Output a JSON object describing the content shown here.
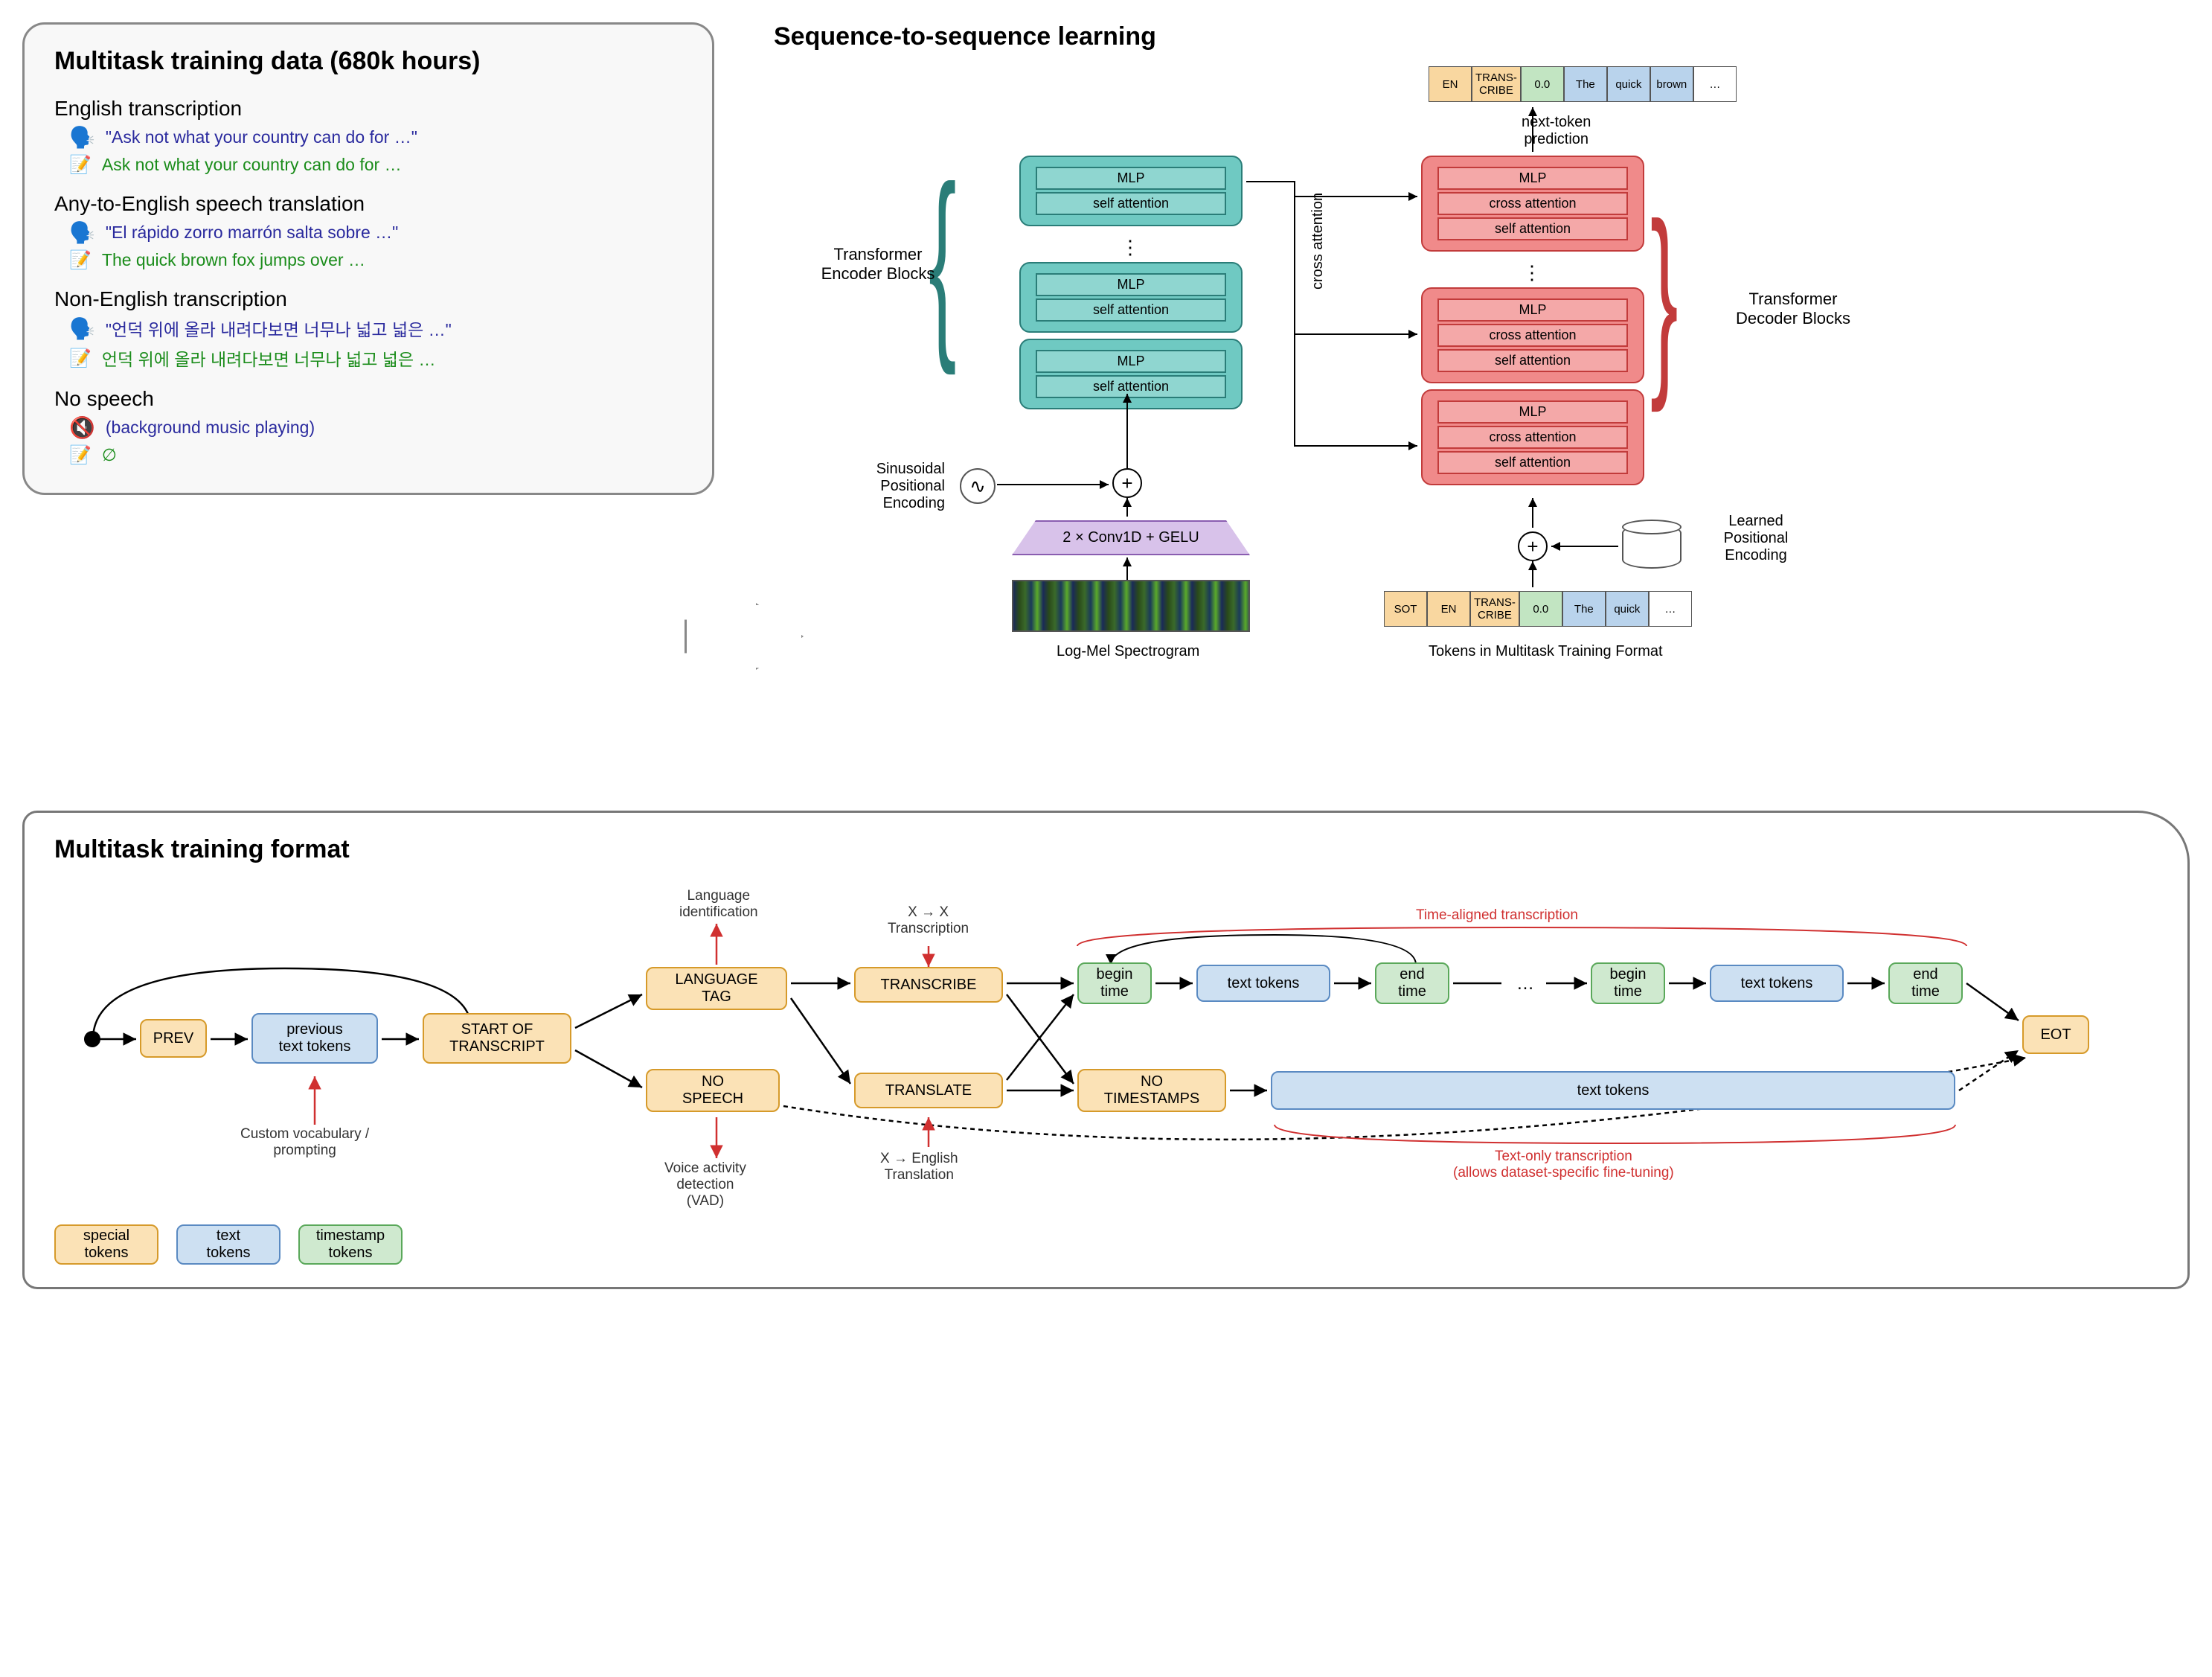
{
  "top_left": {
    "title": "Multitask training data (680k hours)",
    "sections": [
      {
        "head": "English transcription",
        "speak": "\"Ask not what your country can do for …\"",
        "write": "Ask not what your country can do for …"
      },
      {
        "head": "Any-to-English speech translation",
        "speak": "\"El rápido zorro marrón salta sobre …\"",
        "write": "The quick brown fox jumps over …"
      },
      {
        "head": "Non-English transcription",
        "speak": "\"언덕 위에 올라 내려다보면 너무나 넓고 넓은 …\"",
        "write": "언덕 위에 올라 내려다보면 너무나 넓고 넓은 …"
      },
      {
        "head": "No speech",
        "speak": "(background music playing)",
        "write": "∅"
      }
    ]
  },
  "seq": {
    "title": "Sequence-to-sequence learning",
    "enc_label": "Transformer\nEncoder Blocks",
    "dec_label": "Transformer\nDecoder Blocks",
    "cross_attn": "cross attention",
    "sin_pos": "Sinusoidal\nPositional\nEncoding",
    "learned_pos": "Learned\nPositional\nEncoding",
    "conv": "2 × Conv1D + GELU",
    "spectro": "Log-Mel Spectrogram",
    "tokens_label": "Tokens in Multitask Training Format",
    "next_token": "next-token\nprediction",
    "enc_layers": [
      "MLP",
      "self attention"
    ],
    "dec_layers": [
      "MLP",
      "cross attention",
      "self attention"
    ],
    "top_tokens": [
      {
        "t": "EN",
        "c": "tk-orange"
      },
      {
        "t": "TRANS-\nCRIBE",
        "c": "tk-orange"
      },
      {
        "t": "0.0",
        "c": "tk-green"
      },
      {
        "t": "The",
        "c": "tk-blue"
      },
      {
        "t": "quick",
        "c": "tk-blue"
      },
      {
        "t": "brown",
        "c": "tk-blue"
      },
      {
        "t": "…",
        "c": "tk-white"
      }
    ],
    "bottom_tokens": [
      {
        "t": "SOT",
        "c": "tk-orange"
      },
      {
        "t": "EN",
        "c": "tk-orange"
      },
      {
        "t": "TRANS-\nCRIBE",
        "c": "tk-orange"
      },
      {
        "t": "0.0",
        "c": "tk-green"
      },
      {
        "t": "The",
        "c": "tk-blue"
      },
      {
        "t": "quick",
        "c": "tk-blue"
      },
      {
        "t": "…",
        "c": "tk-white"
      }
    ]
  },
  "bottom": {
    "title": "Multitask training format",
    "nodes": {
      "prev": "PREV",
      "prev_text": "previous\ntext tokens",
      "sot": "START OF\nTRANSCRIPT",
      "lang": "LANGUAGE\nTAG",
      "nospeech": "NO\nSPEECH",
      "transcribe": "TRANSCRIBE",
      "translate": "TRANSLATE",
      "begin1": "begin\ntime",
      "text1": "text tokens",
      "end1": "end\ntime",
      "begin2": "begin\ntime",
      "text2": "text tokens",
      "end2": "end\ntime",
      "notimestamps": "NO\nTIMESTAMPS",
      "textonly": "text tokens",
      "eot": "EOT"
    },
    "labels": {
      "custom_vocab": "Custom vocabulary /\nprompting",
      "lang_id": "Language\nidentification",
      "vad": "Voice activity\ndetection\n(VAD)",
      "xx": "X → X\nTranscription",
      "xe": "X → English\nTranslation",
      "time_aligned": "Time-aligned transcription",
      "text_only": "Text-only transcription\n(allows dataset-specific fine-tuning)"
    },
    "legend": {
      "special": "special\ntokens",
      "text": "text\ntokens",
      "ts": "timestamp\ntokens"
    }
  },
  "colors": {
    "encoder_fill": "#6fc9c2",
    "encoder_border": "#2a7d78",
    "decoder_fill": "#f08a8a",
    "decoder_border": "#c23b3b",
    "conv_fill": "#d8c2ea",
    "conv_border": "#8a5db0",
    "orange_fill": "#fbe2b6",
    "orange_border": "#d69a2a",
    "blue_fill": "#cde0f2",
    "blue_border": "#5a8ac2",
    "green_fill": "#cfe9cf",
    "green_border": "#5aa85a",
    "red": "#d03030",
    "quote": "#2a2a9e",
    "trans": "#1a8c1a"
  }
}
